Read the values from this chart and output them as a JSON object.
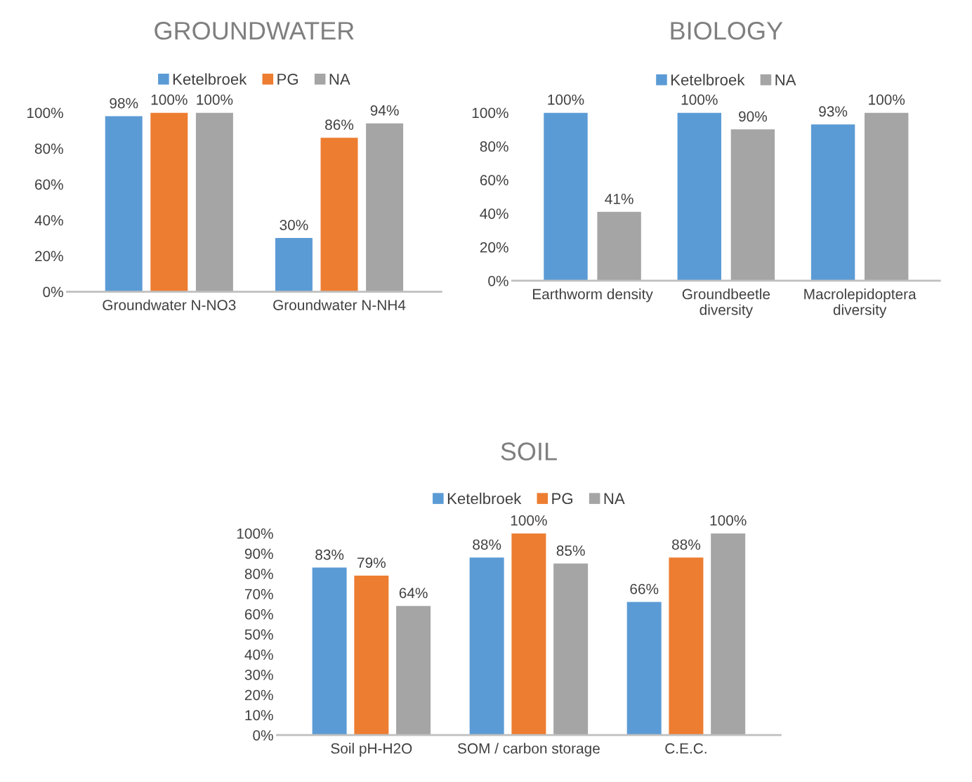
{
  "chart_data": [
    {
      "type": "bar",
      "title": "GROUNDWATER",
      "categories": [
        "Groundwater N-NO3",
        "Groundwater N-NH4"
      ],
      "legend": "top",
      "grid": false,
      "ylim": [
        0,
        100
      ],
      "yticks": [
        {
          "value": 0,
          "label": "0%"
        },
        {
          "value": 20,
          "label": "20%"
        },
        {
          "value": 40,
          "label": "40%"
        },
        {
          "value": 60,
          "label": "60%"
        },
        {
          "value": 80,
          "label": "80%"
        },
        {
          "value": 100,
          "label": "100%"
        }
      ],
      "series": [
        {
          "name": "Ketelbroek",
          "color": "#5b9bd5",
          "values": [
            98,
            30
          ],
          "value_labels": [
            "98%",
            "30%"
          ]
        },
        {
          "name": "PG",
          "color": "#ed7d31",
          "values": [
            100,
            86
          ],
          "value_labels": [
            "100%",
            "86%"
          ]
        },
        {
          "name": "NA",
          "color": "#a5a5a5",
          "values": [
            100,
            94
          ],
          "value_labels": [
            "100%",
            "94%"
          ]
        }
      ]
    },
    {
      "type": "bar",
      "title": "BIOLOGY",
      "categories": [
        "Earthworm density",
        "Groundbeetle\ndiversity",
        "Macrolepidoptera\ndiversity"
      ],
      "legend": "top",
      "grid": false,
      "ylim": [
        0,
        100
      ],
      "yticks": [
        {
          "value": 0,
          "label": "0%"
        },
        {
          "value": 20,
          "label": "20%"
        },
        {
          "value": 40,
          "label": "40%"
        },
        {
          "value": 60,
          "label": "60%"
        },
        {
          "value": 80,
          "label": "80%"
        },
        {
          "value": 100,
          "label": "100%"
        }
      ],
      "series": [
        {
          "name": "Ketelbroek",
          "color": "#5b9bd5",
          "values": [
            100,
            100,
            93
          ],
          "value_labels": [
            "100%",
            "100%",
            "93%"
          ]
        },
        {
          "name": "NA",
          "color": "#a5a5a5",
          "values": [
            41,
            90,
            100
          ],
          "value_labels": [
            "41%",
            "90%",
            "100%"
          ]
        }
      ]
    },
    {
      "type": "bar",
      "title": "SOIL",
      "categories": [
        "Soil pH-H2O",
        "SOM / carbon storage",
        "C.E.C."
      ],
      "legend": "top",
      "grid": false,
      "ylim": [
        0,
        100
      ],
      "yticks": [
        {
          "value": 0,
          "label": "0%"
        },
        {
          "value": 10,
          "label": "10%"
        },
        {
          "value": 20,
          "label": "20%"
        },
        {
          "value": 30,
          "label": "30%"
        },
        {
          "value": 40,
          "label": "40%"
        },
        {
          "value": 50,
          "label": "50%"
        },
        {
          "value": 60,
          "label": "60%"
        },
        {
          "value": 70,
          "label": "70%"
        },
        {
          "value": 80,
          "label": "80%"
        },
        {
          "value": 90,
          "label": "90%"
        },
        {
          "value": 100,
          "label": "100%"
        }
      ],
      "series": [
        {
          "name": "Ketelbroek",
          "color": "#5b9bd5",
          "values": [
            83,
            88,
            66
          ],
          "value_labels": [
            "83%",
            "88%",
            "66%"
          ]
        },
        {
          "name": "PG",
          "color": "#ed7d31",
          "values": [
            79,
            100,
            88
          ],
          "value_labels": [
            "79%",
            "100%",
            "88%"
          ]
        },
        {
          "name": "NA",
          "color": "#a5a5a5",
          "values": [
            64,
            85,
            100
          ],
          "value_labels": [
            "64%",
            "85%",
            "100%"
          ]
        }
      ]
    }
  ]
}
